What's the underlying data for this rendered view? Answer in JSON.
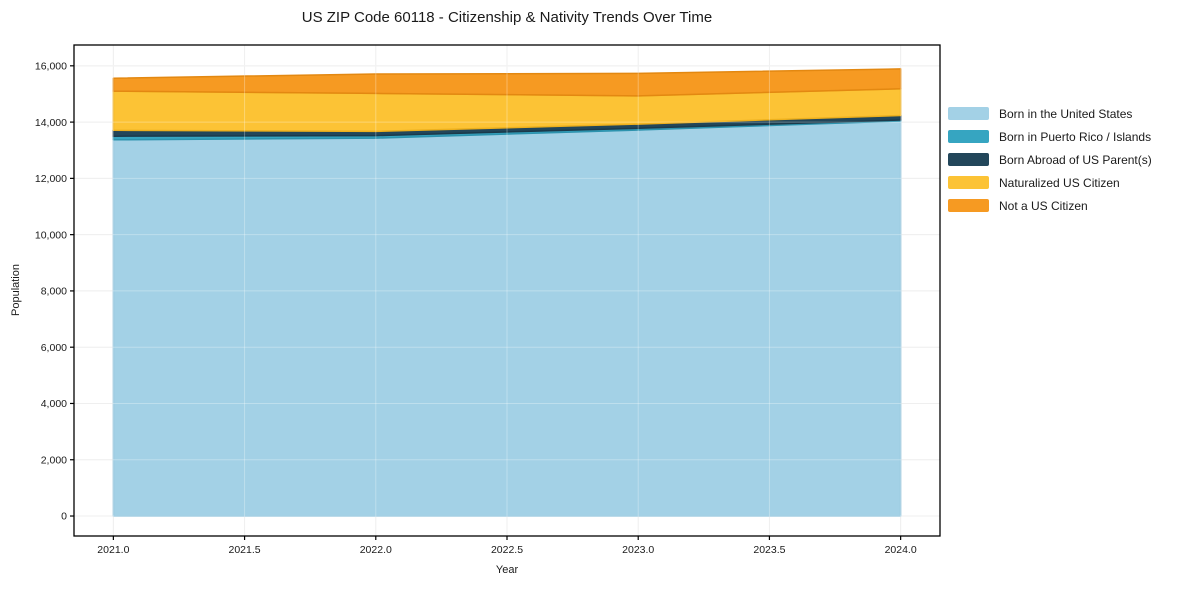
{
  "title": "US ZIP Code 60118 - Citizenship & Nativity Trends Over Time",
  "chart_data": {
    "type": "area",
    "stacked": true,
    "title": "US ZIP Code 60118 - Citizenship & Nativity Trends Over Time",
    "xlabel": "Year",
    "ylabel": "Population",
    "x": [
      2021,
      2022,
      2023,
      2024
    ],
    "series": [
      {
        "name": "Born in the United States",
        "color": "#a3d1e6",
        "edge": "#8fc3dc",
        "values": [
          13370,
          13430,
          13720,
          14040
        ]
      },
      {
        "name": "Born in Puerto Rico / Islands",
        "color": "#36a5c1",
        "edge": "#2d93ae",
        "values": [
          130,
          90,
          60,
          35
        ]
      },
      {
        "name": "Born Abroad of US Parent(s)",
        "color": "#22465a",
        "edge": "#1b3a4b",
        "values": [
          210,
          150,
          150,
          160
        ]
      },
      {
        "name": "Naturalized US Citizen",
        "color": "#fcc335",
        "edge": "#edb01d",
        "values": [
          1390,
          1350,
          1000,
          950
        ]
      },
      {
        "name": "Not a US Citizen",
        "color": "#f69a22",
        "edge": "#e38811",
        "values": [
          460,
          690,
          800,
          705
        ]
      }
    ],
    "totals": [
      15560,
      15710,
      15730,
      15890
    ],
    "xticks": [
      2021.0,
      2021.5,
      2022.0,
      2022.5,
      2023.0,
      2023.5,
      2024.0
    ],
    "xtick_labels": [
      "2021.0",
      "2021.5",
      "2022.0",
      "2022.5",
      "2023.0",
      "2023.5",
      "2024.0"
    ],
    "yticks": [
      0,
      2000,
      4000,
      6000,
      8000,
      10000,
      12000,
      14000,
      16000
    ],
    "ytick_labels": [
      "0",
      "2,000",
      "4,000",
      "6,000",
      "8,000",
      "10,000",
      "12,000",
      "14,000",
      "16,000"
    ],
    "xlim": [
      2020.85,
      2024.15
    ],
    "ylim": [
      -710,
      16740
    ],
    "grid": true,
    "legend_position": "right-outside"
  }
}
